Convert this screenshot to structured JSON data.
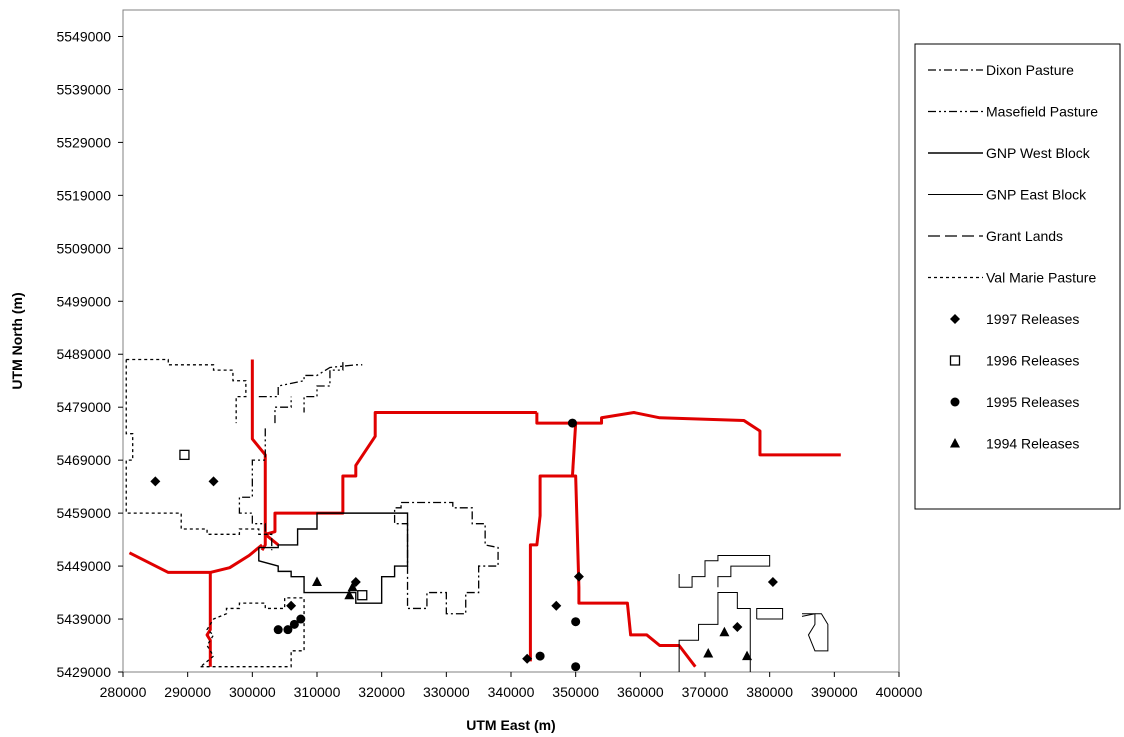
{
  "chart_data": {
    "type": "scatter",
    "title": "",
    "xlabel": "UTM East (m)",
    "ylabel": "UTM North (m)",
    "xlim": [
      280000,
      400000
    ],
    "ylim": [
      5429000,
      5554000
    ],
    "x_ticks": [
      280000,
      290000,
      300000,
      310000,
      320000,
      330000,
      340000,
      350000,
      360000,
      370000,
      380000,
      390000,
      400000
    ],
    "y_ticks": [
      5429000,
      5439000,
      5449000,
      5459000,
      5469000,
      5479000,
      5489000,
      5499000,
      5509000,
      5519000,
      5529000,
      5539000,
      5549000
    ],
    "grid": false,
    "legend_position": "right",
    "road_color": "#e00000",
    "roads": [
      [
        [
          281000,
          5451500
        ],
        [
          287000,
          5447800
        ],
        [
          293500,
          5447800
        ],
        [
          296500,
          5448700
        ],
        [
          299500,
          5451000
        ],
        [
          301500,
          5453000
        ]
      ],
      [
        [
          300000,
          5488000
        ],
        [
          300000,
          5473000
        ],
        [
          302000,
          5470000
        ],
        [
          302000,
          5455000
        ],
        [
          304000,
          5453000
        ]
      ],
      [
        [
          293500,
          5447800
        ],
        [
          293500,
          5437000
        ],
        [
          293000,
          5436000
        ],
        [
          293500,
          5435000
        ],
        [
          293500,
          5430000
        ]
      ],
      [
        [
          301500,
          5452000
        ],
        [
          302000,
          5453000
        ],
        [
          302000,
          5455000
        ],
        [
          303500,
          5455500
        ],
        [
          303500,
          5459000
        ],
        [
          314000,
          5459000
        ],
        [
          314000,
          5466000
        ],
        [
          316000,
          5466000
        ],
        [
          316000,
          5468000
        ],
        [
          319000,
          5473500
        ],
        [
          319000,
          5478000
        ],
        [
          344000,
          5478000
        ]
      ],
      [
        [
          344000,
          5478000
        ],
        [
          344000,
          5476000
        ],
        [
          354000,
          5476000
        ],
        [
          354000,
          5477000
        ],
        [
          359000,
          5478000
        ],
        [
          363000,
          5477000
        ],
        [
          376000,
          5476500
        ],
        [
          378500,
          5474500
        ],
        [
          378500,
          5470000
        ],
        [
          391000,
          5470000
        ]
      ],
      [
        [
          350000,
          5476000
        ],
        [
          349500,
          5466000
        ]
      ],
      [
        [
          343000,
          5431000
        ],
        [
          343000,
          5453000
        ],
        [
          344000,
          5453000
        ],
        [
          344500,
          5458500
        ],
        [
          344500,
          5466000
        ],
        [
          350000,
          5466000
        ],
        [
          350500,
          5445000
        ],
        [
          350500,
          5442000
        ],
        [
          358000,
          5442000
        ],
        [
          358500,
          5436000
        ],
        [
          361000,
          5436000
        ],
        [
          363000,
          5434000
        ],
        [
          366000,
          5434000
        ],
        [
          368500,
          5430000
        ]
      ]
    ],
    "series": [
      {
        "name": "Dixon Pasture",
        "kind": "line",
        "dash": "8 3 2 3",
        "width": 1.3,
        "paths": [
          [
            [
              323000,
              5461000
            ],
            [
              331000,
              5461000
            ],
            [
              331000,
              5460000
            ],
            [
              334000,
              5460000
            ],
            [
              334000,
              5457000
            ],
            [
              336000,
              5457000
            ],
            [
              336000,
              5453000
            ],
            [
              338000,
              5452500
            ],
            [
              338000,
              5449000
            ],
            [
              335000,
              5449000
            ],
            [
              335000,
              5444000
            ],
            [
              333000,
              5444000
            ],
            [
              333000,
              5440000
            ],
            [
              330000,
              5440000
            ],
            [
              330000,
              5444000
            ],
            [
              327000,
              5444000
            ],
            [
              327000,
              5441000
            ],
            [
              324000,
              5441000
            ],
            [
              324000,
              5457000
            ],
            [
              322000,
              5457000
            ],
            [
              322000,
              5460000
            ],
            [
              323000,
              5460000
            ],
            [
              323000,
              5461000
            ]
          ]
        ]
      },
      {
        "name": "Masefield Pasture",
        "kind": "line",
        "dash": "8 3 2 3 2 3",
        "width": 1.3,
        "paths": [
          [
            [
              301000,
              5481000
            ],
            [
              304000,
              5481000
            ],
            [
              304000,
              5483000
            ],
            [
              308000,
              5484000
            ],
            [
              308000,
              5485000
            ],
            [
              310000,
              5485000
            ],
            [
              312000,
              5486500
            ],
            [
              316000,
              5487000
            ],
            [
              317000,
              5487000
            ]
          ],
          [
            [
              302000,
              5475000
            ],
            [
              302000,
              5469000
            ],
            [
              300000,
              5469000
            ],
            [
              300000,
              5462000
            ],
            [
              298000,
              5462000
            ],
            [
              298000,
              5459000
            ],
            [
              300000,
              5459000
            ],
            [
              300000,
              5457000
            ],
            [
              302000,
              5457000
            ],
            [
              302000,
              5455000
            ],
            [
              303000,
              5455000
            ],
            [
              303000,
              5452000
            ]
          ],
          [
            [
              314000,
              5487500
            ],
            [
              314000,
              5486000
            ],
            [
              312000,
              5486000
            ],
            [
              312000,
              5483000
            ],
            [
              310000,
              5483000
            ],
            [
              310000,
              5481000
            ],
            [
              308000,
              5481000
            ],
            [
              308000,
              5478000
            ]
          ],
          [
            [
              303500,
              5476000
            ],
            [
              303500,
              5479000
            ],
            [
              306000,
              5479000
            ],
            [
              306000,
              5481000
            ]
          ]
        ]
      },
      {
        "name": "GNP West Block",
        "kind": "line",
        "dash": "",
        "width": 1.4,
        "paths": [
          [
            [
              301000,
              5452500
            ],
            [
              304000,
              5452500
            ],
            [
              304000,
              5453000
            ],
            [
              307000,
              5453000
            ],
            [
              307000,
              5456000
            ],
            [
              310000,
              5456000
            ],
            [
              310000,
              5459000
            ],
            [
              324000,
              5459000
            ],
            [
              324000,
              5449000
            ],
            [
              322000,
              5449000
            ],
            [
              322000,
              5447000
            ],
            [
              320000,
              5447000
            ],
            [
              320000,
              5442000
            ],
            [
              316000,
              5442000
            ],
            [
              316000,
              5444000
            ],
            [
              308000,
              5444000
            ],
            [
              308000,
              5447000
            ],
            [
              306000,
              5447000
            ],
            [
              306000,
              5448000
            ],
            [
              304000,
              5448000
            ],
            [
              304000,
              5449000
            ],
            [
              301000,
              5450000
            ],
            [
              301000,
              5452500
            ]
          ]
        ]
      },
      {
        "name": "GNP East Block",
        "kind": "line",
        "dash": "",
        "width": 1.0,
        "paths": [
          [
            [
              366000,
              5429000
            ],
            [
              366000,
              5435000
            ],
            [
              369000,
              5435000
            ],
            [
              369000,
              5438000
            ],
            [
              372000,
              5438000
            ],
            [
              372000,
              5444000
            ],
            [
              375000,
              5444000
            ],
            [
              375000,
              5441000
            ],
            [
              377000,
              5441000
            ],
            [
              377000,
              5429000
            ]
          ],
          [
            [
              366000,
              5447500
            ],
            [
              366000,
              5445000
            ],
            [
              368000,
              5445000
            ],
            [
              368000,
              5447000
            ],
            [
              370000,
              5447000
            ],
            [
              370000,
              5450000
            ],
            [
              372000,
              5450000
            ],
            [
              372000,
              5451000
            ],
            [
              380000,
              5451000
            ],
            [
              380000,
              5449000
            ],
            [
              374000,
              5449000
            ],
            [
              374000,
              5447000
            ],
            [
              372000,
              5447000
            ],
            [
              372000,
              5445000
            ]
          ],
          [
            [
              378000,
              5439000
            ],
            [
              382000,
              5439000
            ],
            [
              382000,
              5441000
            ],
            [
              378000,
              5441000
            ],
            [
              378000,
              5439000
            ]
          ],
          [
            [
              385000,
              5439500
            ],
            [
              387000,
              5440000
            ],
            [
              387000,
              5438000
            ],
            [
              386000,
              5436000
            ],
            [
              387000,
              5433000
            ],
            [
              389000,
              5433000
            ],
            [
              389000,
              5438000
            ],
            [
              388000,
              5440000
            ],
            [
              385000,
              5440000
            ]
          ]
        ]
      },
      {
        "name": "Grant Lands",
        "kind": "line",
        "dash": "12 5",
        "width": 1.3,
        "paths": []
      },
      {
        "name": "Val Marie Pasture",
        "kind": "line",
        "dash": "3 3",
        "width": 1.3,
        "paths": [
          [
            [
              280500,
              5488000
            ],
            [
              287000,
              5488000
            ],
            [
              287000,
              5487000
            ],
            [
              294000,
              5487000
            ],
            [
              294000,
              5486000
            ],
            [
              297000,
              5486000
            ],
            [
              297000,
              5484000
            ],
            [
              299000,
              5484000
            ],
            [
              299000,
              5481000
            ],
            [
              297500,
              5481000
            ],
            [
              297500,
              5476000
            ]
          ],
          [
            [
              280500,
              5488000
            ],
            [
              280500,
              5474000
            ],
            [
              281500,
              5474000
            ],
            [
              281500,
              5469000
            ],
            [
              280500,
              5469000
            ],
            [
              280500,
              5462000
            ],
            [
              280500,
              5459000
            ],
            [
              289000,
              5459000
            ],
            [
              289000,
              5456000
            ],
            [
              293000,
              5456000
            ],
            [
              293000,
              5455000
            ],
            [
              298000,
              5455000
            ],
            [
              298000,
              5456000
            ],
            [
              301000,
              5456000
            ],
            [
              301000,
              5455000
            ],
            [
              303000,
              5455000
            ]
          ],
          [
            [
              292000,
              5430000
            ],
            [
              306000,
              5430000
            ],
            [
              306000,
              5433000
            ],
            [
              308000,
              5433000
            ],
            [
              308000,
              5443000
            ],
            [
              305000,
              5443000
            ],
            [
              305000,
              5441000
            ],
            [
              302000,
              5441000
            ],
            [
              302000,
              5442000
            ],
            [
              298000,
              5442000
            ],
            [
              298000,
              5441000
            ],
            [
              296000,
              5441000
            ],
            [
              296000,
              5440000
            ],
            [
              294000,
              5439000
            ],
            [
              293000,
              5437000
            ],
            [
              294000,
              5436000
            ],
            [
              293000,
              5434000
            ],
            [
              294000,
              5432000
            ],
            [
              292000,
              5430000
            ]
          ]
        ]
      },
      {
        "name": "1997 Releases",
        "kind": "point",
        "marker": "diamond",
        "points": [
          [
            285000,
            5465000
          ],
          [
            294000,
            5465000
          ],
          [
            306000,
            5441500
          ],
          [
            316000,
            5446000
          ],
          [
            342500,
            5431500
          ],
          [
            347000,
            5441500
          ],
          [
            350500,
            5447000
          ],
          [
            375000,
            5437500
          ],
          [
            380500,
            5446000
          ]
        ]
      },
      {
        "name": "1996 Releases",
        "kind": "point",
        "marker": "square-open",
        "points": [
          [
            289500,
            5470000
          ],
          [
            317000,
            5443500
          ]
        ]
      },
      {
        "name": "1995 Releases",
        "kind": "point",
        "marker": "circle",
        "points": [
          [
            304000,
            5437000
          ],
          [
            305500,
            5437000
          ],
          [
            307500,
            5439000
          ],
          [
            306500,
            5438000
          ],
          [
            344500,
            5432000
          ],
          [
            349500,
            5476000
          ],
          [
            350000,
            5438500
          ],
          [
            350000,
            5430000
          ]
        ]
      },
      {
        "name": "1994 Releases",
        "kind": "point",
        "marker": "triangle",
        "points": [
          [
            310000,
            5446000
          ],
          [
            315000,
            5443500
          ],
          [
            315500,
            5445000
          ],
          [
            370500,
            5432500
          ],
          [
            373000,
            5436500
          ],
          [
            376500,
            5432000
          ]
        ]
      }
    ]
  }
}
